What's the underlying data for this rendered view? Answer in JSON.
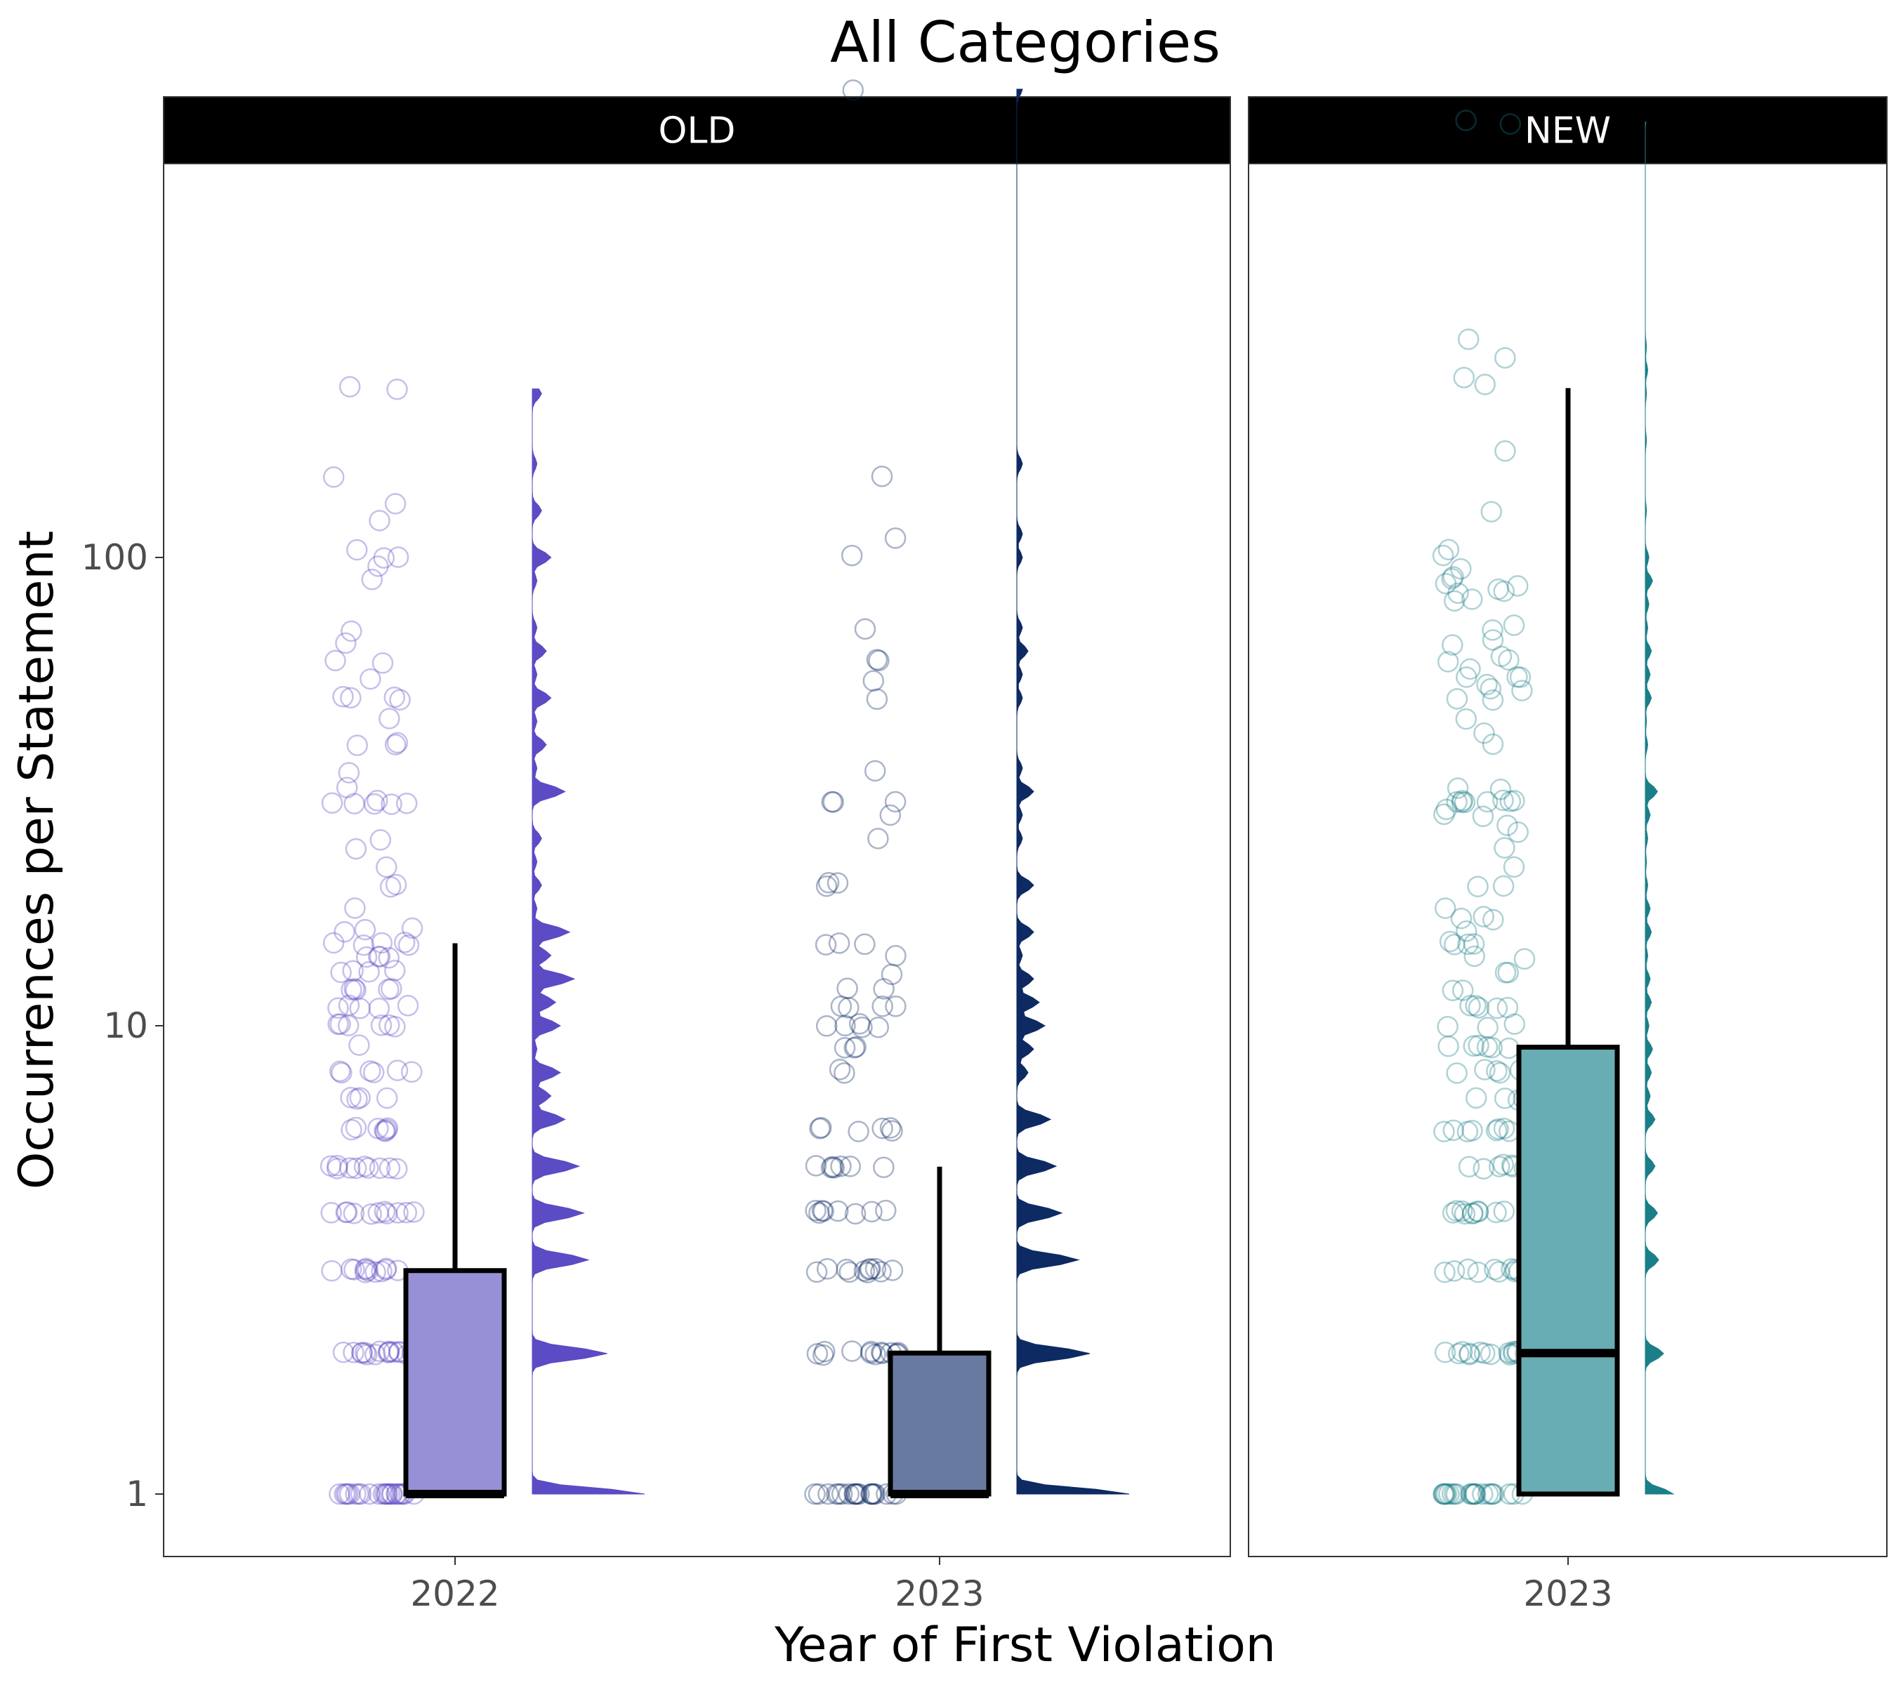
{
  "chart_data": {
    "type": "boxplot",
    "title": "All Categories",
    "xlabel": "Year of First Violation",
    "ylabel": "Occurrences per Statement",
    "y_scale": "log10",
    "y_ticks": [
      1,
      10,
      100
    ],
    "y_tick_labels": [
      "1",
      "10",
      "100"
    ],
    "ylim": [
      0.75,
      2500
    ],
    "grid": false,
    "legend": "none",
    "facets": [
      {
        "label": "OLD",
        "groups": [
          {
            "x_label": "2022",
            "color": "#5b4bc4",
            "fill": "#9890d6",
            "box": {
              "q1": 1,
              "median": 1,
              "q3": 3,
              "whisker_low": 1,
              "whisker_high": 15
            },
            "points": [
              1,
              1,
              1,
              1,
              1,
              1,
              1,
              1,
              1,
              1,
              1,
              1,
              1,
              1,
              1,
              1,
              1,
              1,
              1,
              1,
              1,
              1,
              1,
              1,
              2,
              2,
              2,
              2,
              2,
              2,
              2,
              2,
              2,
              2,
              2,
              2,
              2,
              2,
              2,
              2,
              3,
              3,
              3,
              3,
              3,
              3,
              3,
              3,
              3,
              3,
              3,
              3,
              4,
              4,
              4,
              4,
              4,
              4,
              4,
              4,
              4,
              4,
              4,
              5,
              5,
              5,
              5,
              5,
              5,
              5,
              5,
              5,
              5,
              6,
              6,
              6,
              6,
              6,
              6,
              6,
              7,
              7,
              7,
              7,
              8,
              8,
              8,
              8,
              8,
              8,
              9,
              10,
              10,
              10,
              10,
              10,
              10,
              11,
              11,
              11,
              11,
              11,
              12,
              12,
              12,
              12,
              12,
              13,
              13,
              13,
              13,
              14,
              14,
              14,
              14,
              15,
              15,
              15,
              15,
              15,
              16,
              16,
              16,
              18,
              20,
              20,
              22,
              24,
              25,
              30,
              30,
              30,
              30,
              30,
              30,
              32,
              35,
              40,
              40,
              40,
              45,
              50,
              50,
              50,
              50,
              55,
              60,
              60,
              65,
              70,
              90,
              95,
              100,
              100,
              103,
              120,
              130,
              150,
              230,
              230
            ]
          },
          {
            "x_label": "2023",
            "color": "#0d2a63",
            "fill": "#687aa0",
            "box": {
              "q1": 1,
              "median": 1,
              "q3": 2,
              "whisker_low": 1,
              "whisker_high": 5
            },
            "points": [
              1,
              1,
              1,
              1,
              1,
              1,
              1,
              1,
              1,
              1,
              1,
              1,
              1,
              1,
              1,
              1,
              1,
              1,
              1,
              1,
              2,
              2,
              2,
              2,
              2,
              2,
              2,
              2,
              2,
              2,
              2,
              2,
              2,
              3,
              3,
              3,
              3,
              3,
              3,
              3,
              3,
              3,
              3,
              3,
              4,
              4,
              4,
              4,
              4,
              4,
              4,
              4,
              5,
              5,
              5,
              5,
              5,
              5,
              5,
              6,
              6,
              6,
              6,
              6,
              6,
              8,
              8,
              9,
              9,
              9,
              10,
              10,
              10,
              10,
              10,
              11,
              11,
              11,
              11,
              12,
              12,
              13,
              14,
              15,
              15,
              15,
              20,
              20,
              20,
              25,
              28,
              30,
              30,
              30,
              35,
              50,
              55,
              60,
              60,
              70,
              100,
              110,
              150,
              1000
            ]
          }
        ]
      },
      {
        "label": "NEW",
        "groups": [
          {
            "x_label": "2023",
            "color": "#1a7f88",
            "fill": "#68adb3",
            "box": {
              "q1": 1,
              "median": 2,
              "q3": 9,
              "whisker_low": 1,
              "whisker_high": 230
            },
            "points": [
              1,
              1,
              1,
              1,
              1,
              1,
              1,
              1,
              1,
              1,
              1,
              1,
              1,
              1,
              1,
              1,
              1,
              1,
              1,
              1,
              1,
              1,
              1,
              2,
              2,
              2,
              2,
              2,
              2,
              2,
              2,
              2,
              2,
              2,
              2,
              2,
              2,
              2,
              3,
              3,
              3,
              3,
              3,
              3,
              3,
              3,
              3,
              3,
              3,
              4,
              4,
              4,
              4,
              4,
              4,
              4,
              4,
              4,
              4,
              5,
              5,
              5,
              5,
              5,
              5,
              5,
              5,
              6,
              6,
              6,
              6,
              6,
              6,
              6,
              6,
              7,
              7,
              7,
              7,
              8,
              8,
              8,
              8,
              8,
              9,
              9,
              9,
              9,
              9,
              9,
              10,
              10,
              10,
              11,
              11,
              11,
              11,
              11,
              12,
              12,
              13,
              13,
              14,
              14,
              15,
              15,
              15,
              15,
              16,
              17,
              17,
              17,
              18,
              20,
              20,
              22,
              24,
              26,
              27,
              28,
              28,
              29,
              30,
              30,
              30,
              30,
              30,
              30,
              30,
              30,
              32,
              32,
              40,
              42,
              45,
              50,
              50,
              52,
              52,
              53,
              55,
              55,
              55,
              58,
              60,
              60,
              62,
              65,
              66,
              70,
              72,
              80,
              82,
              84,
              85,
              86,
              87,
              88,
              90,
              90,
              95,
              100,
              103,
              125,
              170,
              235,
              240,
              265,
              290,
              850,
              850
            ]
          }
        ]
      }
    ]
  }
}
